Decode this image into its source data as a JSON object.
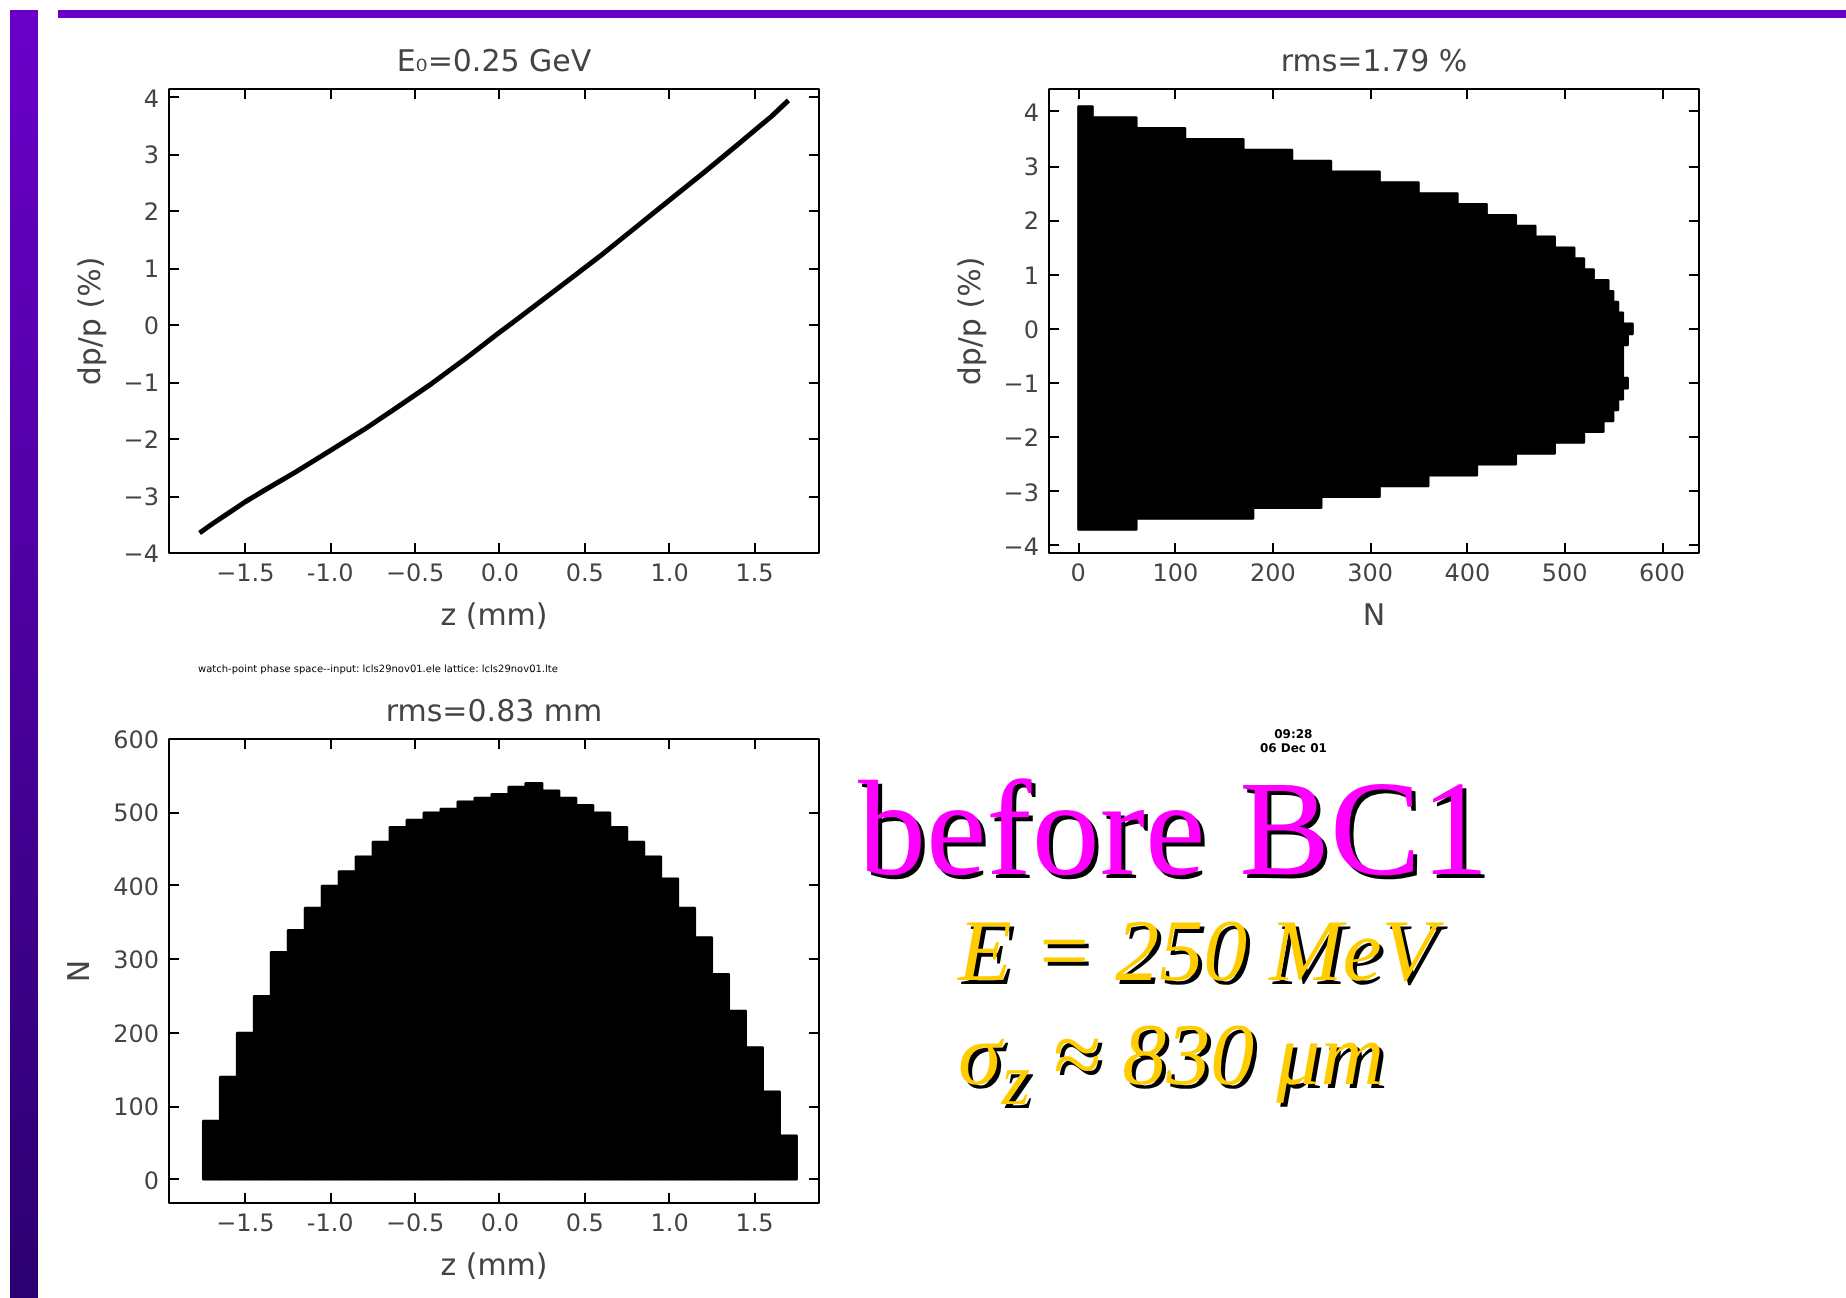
{
  "chart_data": [
    {
      "type": "line",
      "title": "E₀=0.25 GeV",
      "xlabel": "z (mm)",
      "ylabel": "dp/p (%)",
      "color": "#000000",
      "grid": false,
      "x": [
        -1.77,
        -1.7,
        -1.6,
        -1.5,
        -1.4,
        -1.2,
        -1.0,
        -0.8,
        -0.6,
        -0.4,
        -0.2,
        0.0,
        0.2,
        0.4,
        0.6,
        0.8,
        1.0,
        1.2,
        1.4,
        1.6,
        1.7
      ],
      "values": [
        -3.65,
        -3.5,
        -3.3,
        -3.1,
        -2.92,
        -2.57,
        -2.2,
        -1.83,
        -1.43,
        -1.02,
        -0.58,
        -0.12,
        0.33,
        0.78,
        1.24,
        1.72,
        2.2,
        2.68,
        3.17,
        3.67,
        3.95
      ],
      "xlim": [
        -1.95,
        1.88
      ],
      "ylim": [
        -4,
        4.15
      ],
      "xticks": [
        -1.5,
        {
          "value": -1,
          "label": "-1.0"
        },
        -0.5,
        {
          "value": 0,
          "label": "0.0"
        },
        0.5,
        {
          "value": 1,
          "label": "1.0"
        },
        1.5
      ],
      "yticks": [
        -4,
        -3,
        -2,
        -1,
        0,
        1,
        2,
        3,
        4
      ],
      "annotations": [
        "watch-point phase space--input: lcls29nov01.ele    lattice: lcls29nov01.lte"
      ]
    },
    {
      "type": "histogram",
      "orientation": "horizontal",
      "title": "rms=1.79 %",
      "xlabel": "N",
      "ylabel": "dp/p (%)",
      "color": "#000000",
      "grid": false,
      "bins": [
        -3.7,
        -3.5,
        -3.3,
        -3.1,
        -2.9,
        -2.7,
        -2.5,
        -2.3,
        -2.1,
        -1.9,
        -1.7,
        -1.5,
        -1.3,
        -1.1,
        -0.9,
        -0.7,
        -0.5,
        -0.3,
        -0.1,
        0.1,
        0.3,
        0.5,
        0.7,
        0.9,
        1.1,
        1.3,
        1.5,
        1.7,
        1.9,
        2.1,
        2.3,
        2.5,
        2.7,
        2.9,
        3.1,
        3.3,
        3.5,
        3.7,
        3.9,
        4.1
      ],
      "values": [
        60,
        180,
        250,
        310,
        360,
        410,
        450,
        490,
        520,
        540,
        550,
        555,
        560,
        565,
        560,
        560,
        560,
        565,
        570,
        560,
        555,
        550,
        545,
        530,
        520,
        510,
        490,
        470,
        450,
        420,
        390,
        350,
        310,
        260,
        220,
        170,
        110,
        60,
        15
      ],
      "xlim": [
        -30,
        638
      ],
      "ylim": [
        -4.13,
        4.42
      ],
      "xticks": [
        0,
        100,
        200,
        300,
        400,
        500,
        600
      ],
      "yticks": [
        -4,
        -3,
        -2,
        -1,
        0,
        1,
        2,
        3,
        4
      ]
    },
    {
      "type": "histogram",
      "title": "rms=0.83 mm",
      "xlabel": "z (mm)",
      "ylabel": "N",
      "color": "#000000",
      "grid": false,
      "bins": [
        -1.75,
        -1.65,
        -1.55,
        -1.45,
        -1.35,
        -1.25,
        -1.15,
        -1.05,
        -0.95,
        -0.85,
        -0.75,
        -0.65,
        -0.55,
        -0.45,
        -0.35,
        -0.25,
        -0.15,
        -0.05,
        0.05,
        0.15,
        0.25,
        0.35,
        0.45,
        0.55,
        0.65,
        0.75,
        0.85,
        0.95,
        1.05,
        1.15,
        1.25,
        1.35,
        1.45,
        1.55,
        1.65,
        1.75
      ],
      "values": [
        80,
        140,
        200,
        250,
        310,
        340,
        370,
        400,
        420,
        440,
        460,
        480,
        490,
        500,
        505,
        515,
        520,
        525,
        535,
        540,
        530,
        520,
        510,
        500,
        480,
        460,
        440,
        410,
        370,
        330,
        280,
        230,
        180,
        120,
        60
      ],
      "xlim": [
        -1.95,
        1.88
      ],
      "ylim": [
        -32,
        600
      ],
      "xticks": [
        -1.5,
        {
          "value": -1,
          "label": "-1.0"
        },
        -0.5,
        {
          "value": 0,
          "label": "0.0"
        },
        0.5,
        {
          "value": 1,
          "label": "1.0"
        },
        1.5
      ],
      "yticks": [
        0,
        100,
        200,
        300,
        400,
        500,
        600
      ]
    },
    {
      "type": "other",
      "title": "before BC1",
      "annotations": [
        "E = 250 MeV",
        "σ$_{z}$ ≈ 830 μm",
        "09:28",
        "06 Dec 01"
      ]
    }
  ]
}
